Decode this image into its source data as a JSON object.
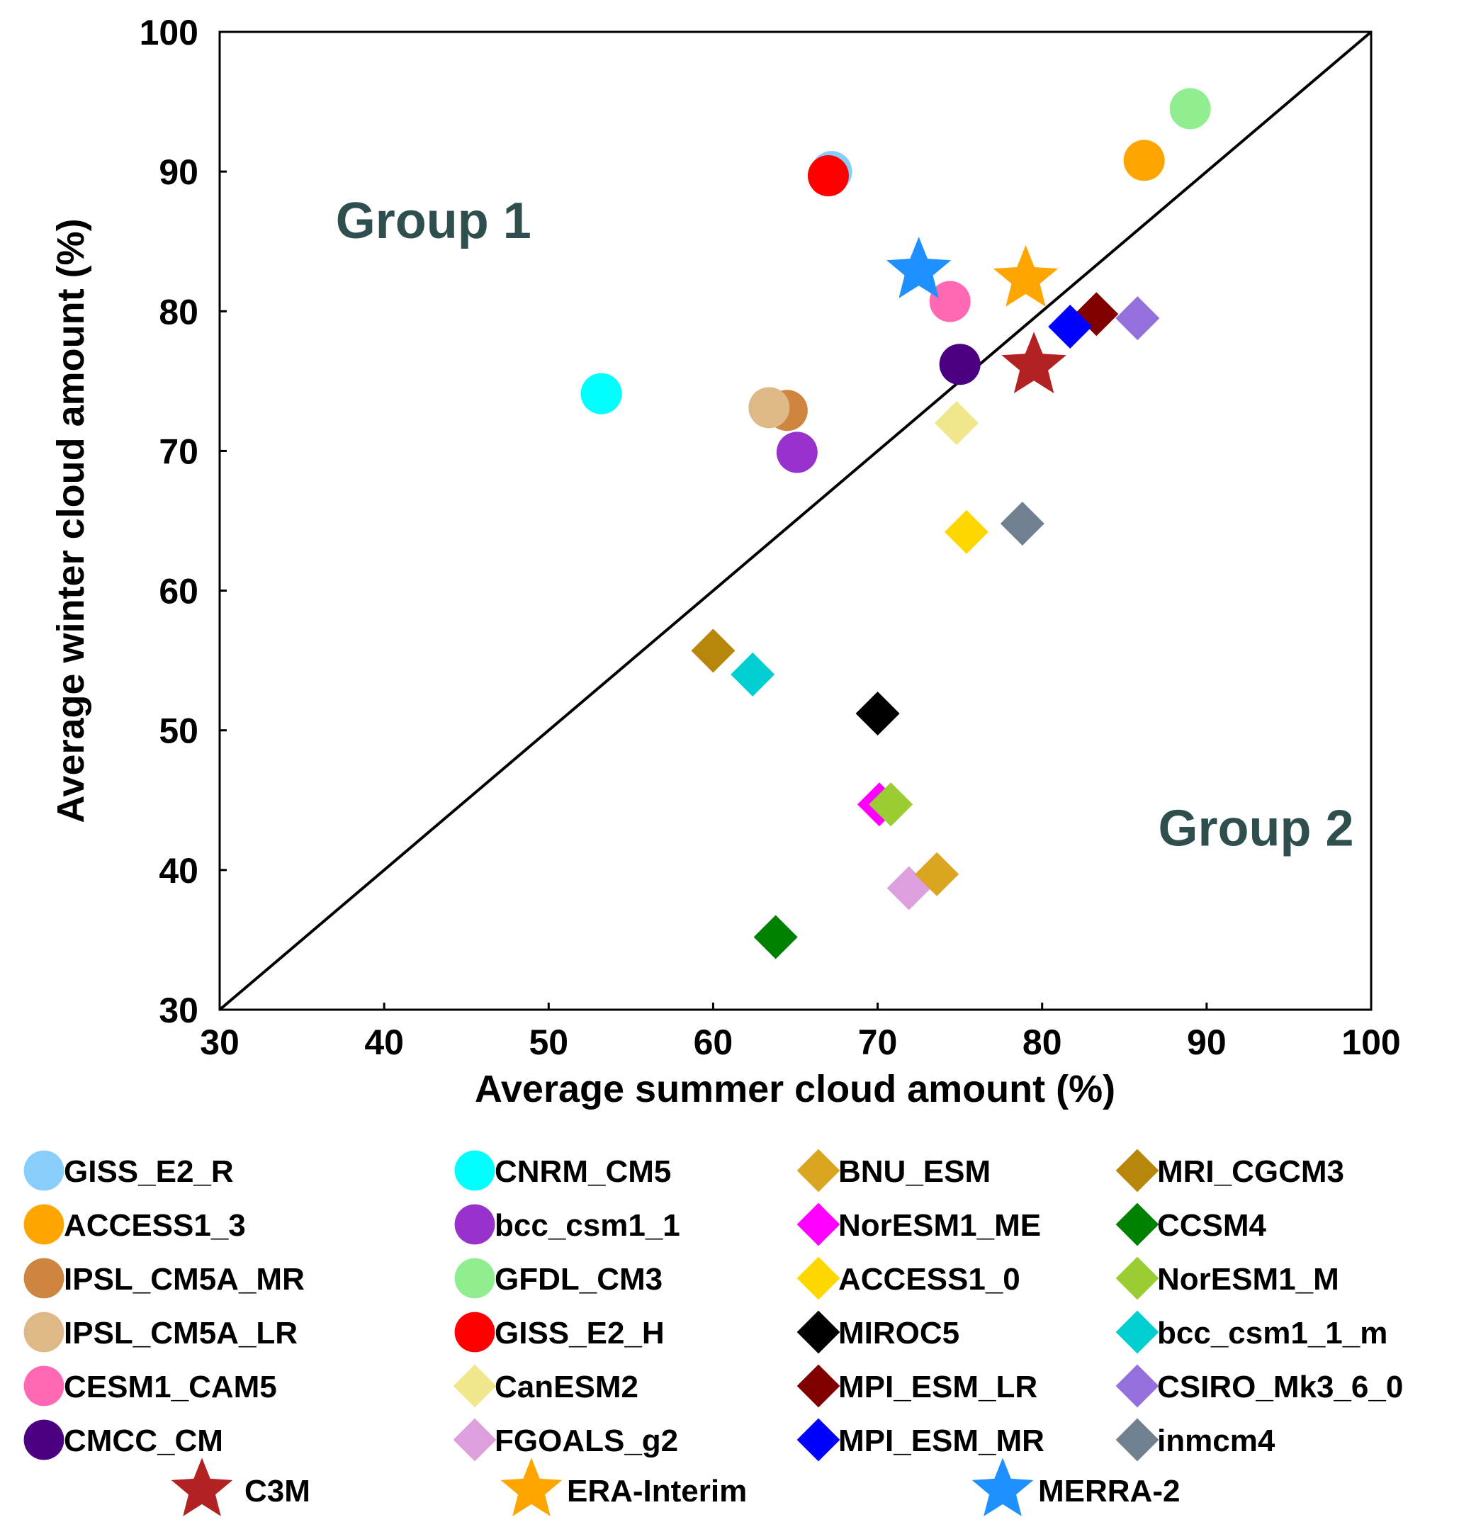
{
  "chart_data": {
    "type": "scatter",
    "xlabel": "Average summer cloud amount  (%)",
    "ylabel": "Average winter cloud amount  (%)",
    "xlim": [
      30,
      100
    ],
    "ylim": [
      30,
      100
    ],
    "xticks": [
      "30",
      "40",
      "50",
      "60",
      "70",
      "80",
      "90",
      "100"
    ],
    "yticks": [
      "30",
      "40",
      "50",
      "60",
      "70",
      "80",
      "90",
      "100"
    ],
    "grid": false,
    "reference_line": "1:1 diagonal",
    "annotations": [
      {
        "text": "Group 1",
        "x": 43,
        "y": 86.5
      },
      {
        "text": "Group 2",
        "x": 93,
        "y": 43
      }
    ],
    "series": [
      {
        "name": "GISS_E2_R",
        "marker": "circle",
        "color": "#87cefa",
        "x": 67.2,
        "y": 90.0
      },
      {
        "name": "ACCESS1_3",
        "marker": "circle",
        "color": "#ffa500",
        "x": 86.2,
        "y": 90.8
      },
      {
        "name": "IPSL_CM5A_MR",
        "marker": "circle",
        "color": "#cd853f",
        "x": 64.5,
        "y": 72.9
      },
      {
        "name": "IPSL_CM5A_LR",
        "marker": "circle",
        "color": "#deb887",
        "x": 63.4,
        "y": 73.1
      },
      {
        "name": "CESM1_CAM5",
        "marker": "circle",
        "color": "#ff69b4",
        "x": 74.4,
        "y": 80.7
      },
      {
        "name": "CMCC_CM",
        "marker": "circle",
        "color": "#4b0082",
        "x": 75.0,
        "y": 76.2
      },
      {
        "name": "CNRM_CM5",
        "marker": "circle",
        "color": "#00ffff",
        "x": 53.2,
        "y": 74.1
      },
      {
        "name": "bcc_csm1_1",
        "marker": "circle",
        "color": "#9932cc",
        "x": 65.1,
        "y": 69.9
      },
      {
        "name": "GFDL_CM3",
        "marker": "circle",
        "color": "#90ee90",
        "x": 89.0,
        "y": 94.5
      },
      {
        "name": "GISS_E2_H",
        "marker": "circle",
        "color": "#ff0000",
        "x": 67.0,
        "y": 89.7
      },
      {
        "name": "CanESM2",
        "marker": "diamond",
        "color": "#f0e68c",
        "x": 74.8,
        "y": 72.0
      },
      {
        "name": "FGOALS_g2",
        "marker": "diamond",
        "color": "#dda0dd",
        "x": 71.9,
        "y": 38.7
      },
      {
        "name": "BNU_ESM",
        "marker": "diamond",
        "color": "#daa520",
        "x": 73.6,
        "y": 39.7
      },
      {
        "name": "NorESM1_ME",
        "marker": "diamond",
        "color": "#ff00ff",
        "x": 70.1,
        "y": 44.7
      },
      {
        "name": "ACCESS1_0",
        "marker": "diamond",
        "color": "#ffd700",
        "x": 75.4,
        "y": 64.2
      },
      {
        "name": "MIROC5",
        "marker": "diamond",
        "color": "#000000",
        "x": 70.0,
        "y": 51.2
      },
      {
        "name": "MPI_ESM_LR",
        "marker": "diamond",
        "color": "#800000",
        "x": 83.3,
        "y": 79.8
      },
      {
        "name": "MPI_ESM_MR",
        "marker": "diamond",
        "color": "#0000ff",
        "x": 81.7,
        "y": 78.9
      },
      {
        "name": "MRI_CGCM3",
        "marker": "diamond",
        "color": "#b8860b",
        "x": 60.0,
        "y": 55.7
      },
      {
        "name": "CCSM4",
        "marker": "diamond",
        "color": "#008000",
        "x": 63.8,
        "y": 35.2
      },
      {
        "name": "NorESM1_M",
        "marker": "diamond",
        "color": "#9acd32",
        "x": 70.8,
        "y": 44.7
      },
      {
        "name": "bcc_csm1_1_m",
        "marker": "diamond",
        "color": "#00ced1",
        "x": 62.4,
        "y": 54.0
      },
      {
        "name": "CSIRO_Mk3_6_0",
        "marker": "diamond",
        "color": "#9370db",
        "x": 85.8,
        "y": 79.5
      },
      {
        "name": "inmcm4",
        "marker": "diamond",
        "color": "#708090",
        "x": 78.8,
        "y": 64.8
      },
      {
        "name": "C3M",
        "marker": "star",
        "color": "#b22222",
        "x": 79.5,
        "y": 76.1
      },
      {
        "name": "ERA-Interim",
        "marker": "star",
        "color": "#ffa500",
        "x": 79.0,
        "y": 82.3
      },
      {
        "name": "MERRA-2",
        "marker": "star",
        "color": "#1e90ff",
        "x": 72.5,
        "y": 82.9
      }
    ],
    "legend": {
      "placement": "bottom",
      "columns": [
        [
          "GISS_E2_R",
          "ACCESS1_3",
          "IPSL_CM5A_MR",
          "IPSL_CM5A_LR",
          "CESM1_CAM5",
          "CMCC_CM"
        ],
        [
          "CNRM_CM5",
          "bcc_csm1_1",
          "GFDL_CM3",
          "GISS_E2_H",
          "CanESM2",
          "FGOALS_g2"
        ],
        [
          "BNU_ESM",
          "NorESM1_ME",
          "ACCESS1_0",
          "MIROC5",
          "MPI_ESM_LR",
          "MPI_ESM_MR"
        ],
        [
          "MRI_CGCM3",
          "CCSM4",
          "NorESM1_M",
          "bcc_csm1_1_m",
          "CSIRO_Mk3_6_0",
          "inmcm4"
        ]
      ],
      "bottom_row": [
        "C3M",
        "ERA-Interim",
        "MERRA-2"
      ]
    }
  }
}
